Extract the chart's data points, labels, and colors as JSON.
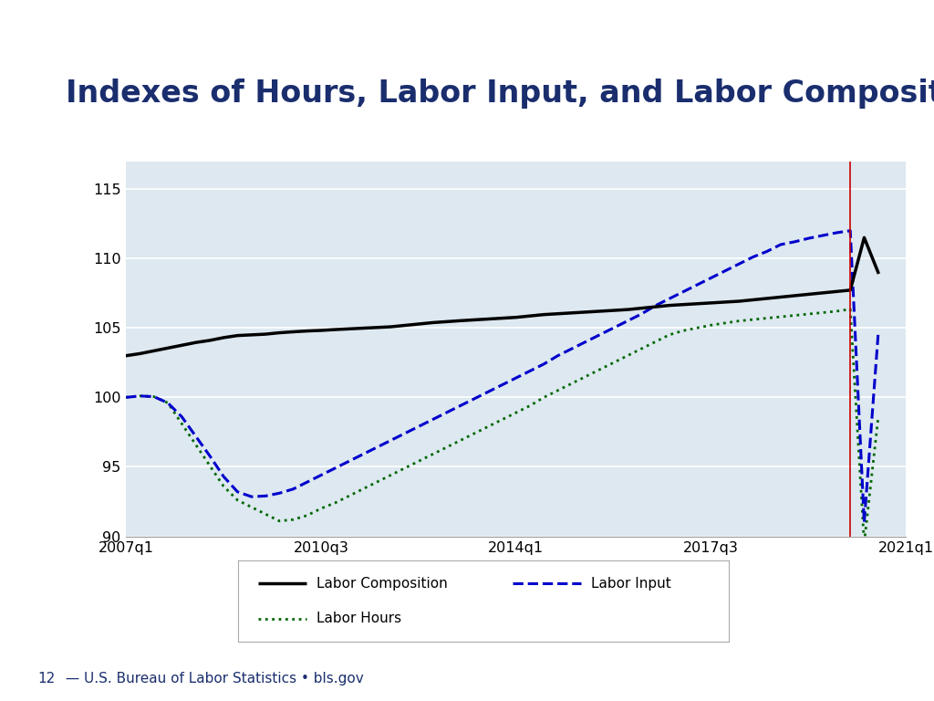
{
  "title": "Indexes of Hours, Labor Input, and Labor Composition",
  "title_color": "#1a2e6e",
  "title_fontsize": 24,
  "title_fontweight": "bold",
  "bg_color": "#ffffff",
  "plot_bg_color": "#dde8f0",
  "ylim": [
    90,
    117
  ],
  "yticks": [
    90,
    95,
    100,
    105,
    110,
    115
  ],
  "xlabel_ticks": [
    "2007q1",
    "2010q3",
    "2014q1",
    "2017q3",
    "2021q1"
  ],
  "xtick_positions": [
    0,
    14,
    28,
    42,
    56
  ],
  "vline_x": 52,
  "footnote_num": "12",
  "footnote_text": " — U.S. Bureau of Labor Statistics • bls.gov",
  "legend_labels": [
    "Labor Composition",
    "Labor Input",
    "Labor Hours"
  ],
  "labor_composition": {
    "color": "#000000",
    "linewidth": 2.5,
    "label": "Labor Composition",
    "values": [
      103.0,
      103.15,
      103.35,
      103.55,
      103.75,
      103.95,
      104.1,
      104.3,
      104.45,
      104.5,
      104.55,
      104.65,
      104.72,
      104.78,
      104.82,
      104.88,
      104.93,
      104.98,
      105.03,
      105.08,
      105.18,
      105.28,
      105.38,
      105.45,
      105.52,
      105.58,
      105.64,
      105.7,
      105.76,
      105.86,
      105.96,
      106.02,
      106.08,
      106.14,
      106.2,
      106.26,
      106.32,
      106.42,
      106.52,
      106.62,
      106.68,
      106.74,
      106.8,
      106.86,
      106.92,
      107.02,
      107.12,
      107.22,
      107.32,
      107.42,
      107.52,
      107.62,
      107.72,
      111.5,
      109.0
    ]
  },
  "labor_input": {
    "color": "#0000cc",
    "linewidth": 2.2,
    "linestyle": "--",
    "label": "Labor Input",
    "values": [
      100.0,
      100.1,
      100.05,
      99.6,
      98.6,
      97.2,
      95.8,
      94.3,
      93.2,
      92.85,
      92.9,
      93.1,
      93.4,
      93.9,
      94.4,
      94.9,
      95.4,
      95.9,
      96.4,
      96.9,
      97.4,
      97.9,
      98.4,
      98.9,
      99.4,
      99.9,
      100.4,
      100.9,
      101.4,
      101.9,
      102.4,
      103.0,
      103.5,
      104.0,
      104.5,
      105.0,
      105.5,
      106.0,
      106.6,
      107.1,
      107.6,
      108.1,
      108.6,
      109.1,
      109.6,
      110.1,
      110.5,
      111.0,
      111.2,
      111.45,
      111.65,
      111.85,
      112.0,
      91.0,
      104.5
    ]
  },
  "labor_hours": {
    "color": "#006600",
    "linewidth": 2.0,
    "linestyle": ":",
    "label": "Labor Hours",
    "values": [
      100.0,
      100.1,
      100.05,
      99.6,
      98.1,
      96.6,
      95.1,
      93.6,
      92.6,
      92.1,
      91.6,
      91.1,
      91.2,
      91.5,
      92.0,
      92.4,
      92.9,
      93.4,
      93.9,
      94.4,
      94.9,
      95.4,
      95.9,
      96.4,
      96.9,
      97.4,
      97.9,
      98.4,
      98.9,
      99.4,
      100.0,
      100.5,
      101.0,
      101.5,
      102.0,
      102.5,
      103.0,
      103.5,
      104.0,
      104.5,
      104.8,
      105.0,
      105.2,
      105.35,
      105.5,
      105.6,
      105.7,
      105.8,
      105.9,
      106.0,
      106.1,
      106.2,
      106.35,
      89.5,
      98.5
    ]
  }
}
